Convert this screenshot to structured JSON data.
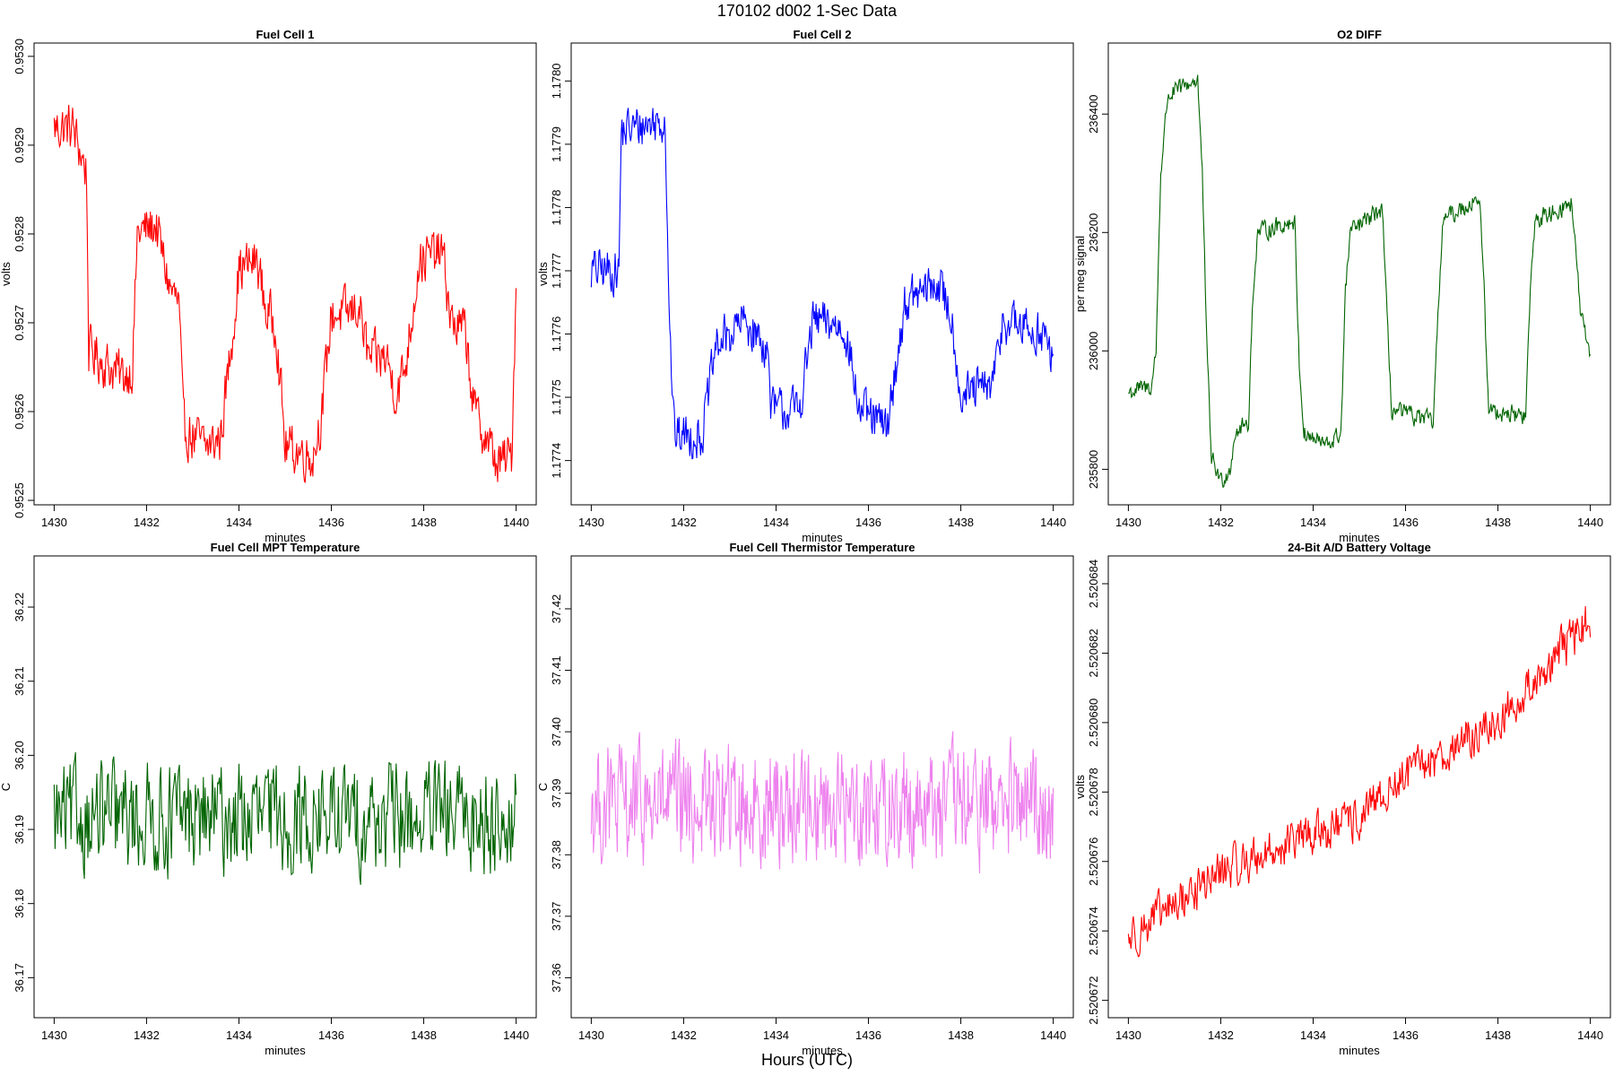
{
  "figure": {
    "title": "170102   d002   1-Sec Data",
    "xlabel": "Hours (UTC)"
  },
  "chart_data": [
    {
      "type": "line",
      "title": "Fuel Cell 1",
      "xlabel": "minutes",
      "ylabel": "volts",
      "color": "#ff0000",
      "xlim": [
        1430,
        1440
      ],
      "ylim": [
        0.952495,
        0.953015
      ],
      "xticks": [
        "1430",
        "1432",
        "1434",
        "1436",
        "1438",
        "1440"
      ],
      "yticks": [
        "0.9525",
        "0.9526",
        "0.9527",
        "0.9528",
        "0.9529",
        "0.9530"
      ],
      "levels": [
        [
          1430,
          0.95292
        ],
        [
          1430.4,
          0.95292
        ],
        [
          1430.7,
          0.95287
        ],
        [
          1430.75,
          0.95267
        ],
        [
          1431.2,
          0.95265
        ],
        [
          1431.5,
          0.95264
        ],
        [
          1431.7,
          0.95265
        ],
        [
          1431.8,
          0.9528
        ],
        [
          1432.2,
          0.95281
        ],
        [
          1432.5,
          0.95274
        ],
        [
          1432.7,
          0.95272
        ],
        [
          1432.8,
          0.95258
        ],
        [
          1433.3,
          0.95256
        ],
        [
          1433.6,
          0.95257
        ],
        [
          1433.8,
          0.95266
        ],
        [
          1434.0,
          0.95276
        ],
        [
          1434.4,
          0.95277
        ],
        [
          1434.6,
          0.95271
        ],
        [
          1434.8,
          0.9527
        ],
        [
          1435.0,
          0.95256
        ],
        [
          1435.6,
          0.95255
        ],
        [
          1435.8,
          0.9526
        ],
        [
          1436.0,
          0.95271
        ],
        [
          1436.4,
          0.95271
        ],
        [
          1436.6,
          0.95272
        ],
        [
          1436.8,
          0.95266
        ],
        [
          1437.2,
          0.95266
        ],
        [
          1437.4,
          0.95262
        ],
        [
          1437.6,
          0.95265
        ],
        [
          1437.9,
          0.95277
        ],
        [
          1438.4,
          0.95278
        ],
        [
          1438.6,
          0.9527
        ],
        [
          1438.9,
          0.95269
        ],
        [
          1439.1,
          0.9526
        ],
        [
          1439.6,
          0.95254
        ],
        [
          1439.9,
          0.95255
        ],
        [
          1440,
          0.95274
        ]
      ],
      "noise": 2.5e-05,
      "samples": 600
    },
    {
      "type": "line",
      "title": "Fuel Cell 2",
      "xlabel": "minutes",
      "ylabel": "volts",
      "color": "#0000ff",
      "xlim": [
        1430,
        1440
      ],
      "ylim": [
        1.17733,
        1.17806
      ],
      "xticks": [
        "1430",
        "1432",
        "1434",
        "1436",
        "1438",
        "1440"
      ],
      "yticks": [
        "1.1774",
        "1.1775",
        "1.1776",
        "1.1777",
        "1.1778",
        "1.1779",
        "1.1780"
      ],
      "levels": [
        [
          1430,
          1.1777
        ],
        [
          1430.6,
          1.1777
        ],
        [
          1430.65,
          1.17792
        ],
        [
          1431.6,
          1.17794
        ],
        [
          1431.7,
          1.1776
        ],
        [
          1431.8,
          1.17744
        ],
        [
          1432.4,
          1.17744
        ],
        [
          1432.7,
          1.17758
        ],
        [
          1433.3,
          1.17762
        ],
        [
          1433.8,
          1.17758
        ],
        [
          1433.9,
          1.17748
        ],
        [
          1434.5,
          1.17748
        ],
        [
          1434.8,
          1.17762
        ],
        [
          1435.5,
          1.17761
        ],
        [
          1435.8,
          1.17748
        ],
        [
          1436.4,
          1.17745
        ],
        [
          1436.8,
          1.17765
        ],
        [
          1437.5,
          1.17768
        ],
        [
          1437.8,
          1.17763
        ],
        [
          1438.0,
          1.1775
        ],
        [
          1438.7,
          1.17752
        ],
        [
          1438.9,
          1.17762
        ],
        [
          1439.8,
          1.1776
        ],
        [
          1440,
          1.17755
        ]
      ],
      "noise": 3.2e-05,
      "samples": 600
    },
    {
      "type": "line",
      "title": "O2 DIFF",
      "xlabel": "minutes",
      "ylabel": "per meg signal",
      "color": "#006400",
      "xlim": [
        1430,
        1440
      ],
      "ylim": [
        235740,
        236520
      ],
      "xticks": [
        "1430",
        "1432",
        "1434",
        "1436",
        "1438",
        "1440"
      ],
      "yticks": [
        "235800",
        "236000",
        "236200",
        "236400"
      ],
      "levels": [
        [
          1430,
          235930
        ],
        [
          1430.5,
          235940
        ],
        [
          1430.6,
          236000
        ],
        [
          1430.7,
          236300
        ],
        [
          1430.85,
          236430
        ],
        [
          1431.5,
          236460
        ],
        [
          1431.6,
          236300
        ],
        [
          1431.7,
          236000
        ],
        [
          1431.8,
          235820
        ],
        [
          1432.0,
          235780
        ],
        [
          1432.2,
          235800
        ],
        [
          1432.3,
          235860
        ],
        [
          1432.6,
          235880
        ],
        [
          1432.7,
          236100
        ],
        [
          1432.8,
          236200
        ],
        [
          1433.6,
          236220
        ],
        [
          1433.7,
          235980
        ],
        [
          1433.8,
          235860
        ],
        [
          1434.3,
          235840
        ],
        [
          1434.6,
          235860
        ],
        [
          1434.7,
          236100
        ],
        [
          1434.8,
          236200
        ],
        [
          1435.5,
          236240
        ],
        [
          1435.6,
          236050
        ],
        [
          1435.7,
          235900
        ],
        [
          1436.6,
          235880
        ],
        [
          1436.7,
          236050
        ],
        [
          1436.8,
          236220
        ],
        [
          1437.6,
          236260
        ],
        [
          1437.7,
          236100
        ],
        [
          1437.8,
          235900
        ],
        [
          1438.6,
          235890
        ],
        [
          1438.7,
          236100
        ],
        [
          1438.8,
          236220
        ],
        [
          1439.6,
          236250
        ],
        [
          1439.7,
          236150
        ],
        [
          1439.8,
          236060
        ],
        [
          1440,
          235980
        ]
      ],
      "noise": 14,
      "samples": 600
    },
    {
      "type": "line",
      "title": "Fuel Cell MPT Temperature",
      "xlabel": "minutes",
      "ylabel": "C",
      "color": "#006400",
      "xlim": [
        1430,
        1440
      ],
      "ylim": [
        36.1646,
        36.2269
      ],
      "xticks": [
        "1430",
        "1432",
        "1434",
        "1436",
        "1438",
        "1440"
      ],
      "yticks": [
        "36.17",
        "36.18",
        "36.19",
        "36.20",
        "36.21",
        "36.22"
      ],
      "levels": [
        [
          1430,
          36.1915
        ],
        [
          1440,
          36.1915
        ]
      ],
      "noise": 0.0065,
      "samples": 520
    },
    {
      "type": "line",
      "title": "Fuel Cell Thermistor Temperature",
      "xlabel": "minutes",
      "ylabel": "C",
      "color": "#ee82ee",
      "xlim": [
        1430,
        1440
      ],
      "ylim": [
        37.3535,
        37.4286
      ],
      "xticks": [
        "1430",
        "1432",
        "1434",
        "1436",
        "1438",
        "1440"
      ],
      "yticks": [
        "37.36",
        "37.37",
        "37.38",
        "37.39",
        "37.40",
        "37.41",
        "37.42"
      ],
      "levels": [
        [
          1430,
          37.388
        ],
        [
          1440,
          37.388
        ]
      ],
      "noise": 0.0085,
      "samples": 640
    },
    {
      "type": "line",
      "title": "24-Bit A/D Battery Voltage",
      "xlabel": "minutes",
      "ylabel": "volts",
      "color": "#ff0000",
      "xlim": [
        1430,
        1440
      ],
      "ylim": [
        2.5206715,
        2.5206848
      ],
      "xticks": [
        "1430",
        "1432",
        "1434",
        "1436",
        "1438",
        "1440"
      ],
      "yticks": [
        "2.520672",
        "2.520674",
        "2.520676",
        "2.520678",
        "2.520680",
        "2.520682",
        "2.520684"
      ],
      "levels": [
        [
          1430,
          2.5206738
        ],
        [
          1432,
          2.5206757
        ],
        [
          1434,
          2.5206768
        ],
        [
          1435,
          2.5206772
        ],
        [
          1436,
          2.5206785
        ],
        [
          1438,
          2.52068
        ],
        [
          1440,
          2.520683
        ]
      ],
      "noise": 5.5e-07,
      "samples": 560
    }
  ]
}
